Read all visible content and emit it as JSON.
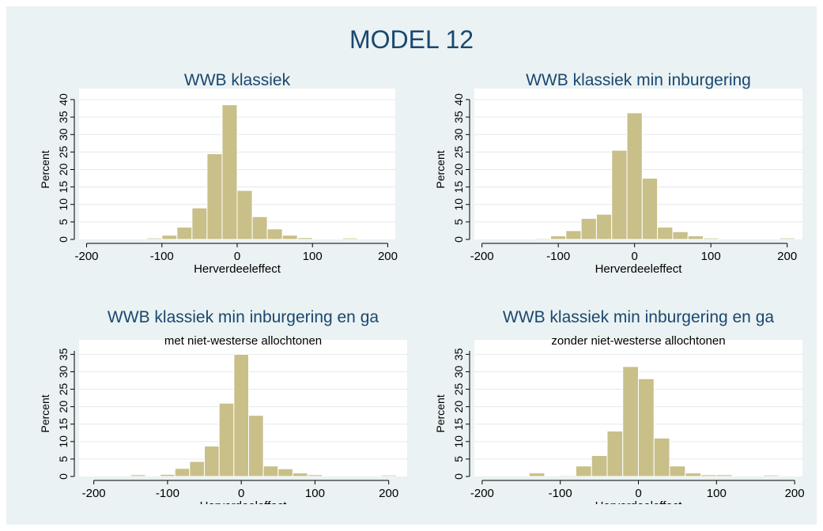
{
  "figure": {
    "title": "MODEL 12"
  },
  "colors": {
    "background": "#eaf2f3",
    "plot_region": "#ffffff",
    "bar_fill": "#c9bf88",
    "bar_stroke": "#ffffff",
    "grid": "#e3e9ec",
    "axis": "#000000",
    "title": "#1a476f"
  },
  "chart_data": [
    {
      "type": "bar",
      "title": "WWB klassiek",
      "subtitle": "",
      "xlabel": "Herverdeeleffect",
      "ylabel": "Percent",
      "xticks": [
        "-200",
        "-100",
        "0",
        "100",
        "200"
      ],
      "xtick_values": [
        -200,
        -100,
        0,
        100,
        200
      ],
      "yticks": [
        "0",
        "5",
        "10",
        "15",
        "20",
        "25",
        "30",
        "35",
        "40"
      ],
      "ytick_values": [
        0,
        5,
        10,
        15,
        20,
        25,
        30,
        35,
        40
      ],
      "xlim": [
        -210,
        210
      ],
      "ylim": [
        0,
        40
      ],
      "grid": true,
      "bins": [
        {
          "x0": -120,
          "x1": -100,
          "value": 0.4
        },
        {
          "x0": -100,
          "x1": -80,
          "value": 1.2
        },
        {
          "x0": -80,
          "x1": -60,
          "value": 3.5
        },
        {
          "x0": -60,
          "x1": -40,
          "value": 9.0
        },
        {
          "x0": -40,
          "x1": -20,
          "value": 24.5
        },
        {
          "x0": -20,
          "x1": 0,
          "value": 38.5
        },
        {
          "x0": 0,
          "x1": 20,
          "value": 14.0
        },
        {
          "x0": 20,
          "x1": 40,
          "value": 6.5
        },
        {
          "x0": 40,
          "x1": 60,
          "value": 3.0
        },
        {
          "x0": 60,
          "x1": 80,
          "value": 1.2
        },
        {
          "x0": 80,
          "x1": 100,
          "value": 0.5
        },
        {
          "x0": 140,
          "x1": 160,
          "value": 0.4
        }
      ]
    },
    {
      "type": "bar",
      "title": "WWB klassiek min inburgering",
      "subtitle": "",
      "xlabel": "Herverdeeleffect",
      "ylabel": "Percent",
      "xticks": [
        "-200",
        "-100",
        "0",
        "100",
        "200"
      ],
      "xtick_values": [
        -200,
        -100,
        0,
        100,
        200
      ],
      "yticks": [
        "0",
        "5",
        "10",
        "15",
        "20",
        "25",
        "30",
        "35",
        "40"
      ],
      "ytick_values": [
        0,
        5,
        10,
        15,
        20,
        25,
        30,
        35,
        40
      ],
      "xlim": [
        -210,
        220
      ],
      "ylim": [
        0,
        40
      ],
      "grid": true,
      "bins": [
        {
          "x0": -130,
          "x1": -110,
          "value": 0.3
        },
        {
          "x0": -110,
          "x1": -90,
          "value": 1.0
        },
        {
          "x0": -90,
          "x1": -70,
          "value": 2.5
        },
        {
          "x0": -70,
          "x1": -50,
          "value": 6.0
        },
        {
          "x0": -50,
          "x1": -30,
          "value": 7.2
        },
        {
          "x0": -30,
          "x1": -10,
          "value": 25.5
        },
        {
          "x0": -10,
          "x1": 10,
          "value": 36.2
        },
        {
          "x0": 10,
          "x1": 30,
          "value": 17.5
        },
        {
          "x0": 30,
          "x1": 50,
          "value": 3.5
        },
        {
          "x0": 50,
          "x1": 70,
          "value": 2.2
        },
        {
          "x0": 70,
          "x1": 90,
          "value": 1.0
        },
        {
          "x0": 90,
          "x1": 110,
          "value": 0.4
        },
        {
          "x0": 190,
          "x1": 210,
          "value": 0.4
        }
      ]
    },
    {
      "type": "bar",
      "title": "WWB klassiek min inburgering en ga",
      "subtitle": "met niet-westerse allochtonen",
      "xlabel": "Herverdeeleffect",
      "ylabel": "Percent",
      "xticks": [
        "-200",
        "-100",
        "0",
        "100",
        "200"
      ],
      "xtick_values": [
        -200,
        -100,
        0,
        100,
        200
      ],
      "yticks": [
        "0",
        "5",
        "10",
        "15",
        "20",
        "25",
        "30",
        "35"
      ],
      "ytick_values": [
        0,
        5,
        10,
        15,
        20,
        25,
        30,
        35
      ],
      "xlim": [
        -220,
        225
      ],
      "ylim": [
        0,
        36
      ],
      "grid": true,
      "bins": [
        {
          "x0": -150,
          "x1": -130,
          "value": 0.5
        },
        {
          "x0": -110,
          "x1": -90,
          "value": 0.6
        },
        {
          "x0": -90,
          "x1": -70,
          "value": 2.3
        },
        {
          "x0": -70,
          "x1": -50,
          "value": 4.3
        },
        {
          "x0": -50,
          "x1": -30,
          "value": 8.7
        },
        {
          "x0": -30,
          "x1": -10,
          "value": 21.0
        },
        {
          "x0": -10,
          "x1": 10,
          "value": 35.0
        },
        {
          "x0": 10,
          "x1": 30,
          "value": 17.5
        },
        {
          "x0": 30,
          "x1": 50,
          "value": 3.0
        },
        {
          "x0": 50,
          "x1": 70,
          "value": 2.2
        },
        {
          "x0": 70,
          "x1": 90,
          "value": 1.0
        },
        {
          "x0": 90,
          "x1": 110,
          "value": 0.5
        },
        {
          "x0": 190,
          "x1": 210,
          "value": 0.4
        }
      ]
    },
    {
      "type": "bar",
      "title": "WWB klassiek min inburgering en ga",
      "subtitle": "zonder niet-westerse allochtonen",
      "xlabel": "Herverdeeleffect",
      "ylabel": "Percent",
      "xticks": [
        "-200",
        "-100",
        "0",
        "100",
        "200"
      ],
      "xtick_values": [
        -200,
        -100,
        0,
        100,
        200
      ],
      "yticks": [
        "0",
        "5",
        "10",
        "15",
        "20",
        "25",
        "30",
        "35"
      ],
      "ytick_values": [
        0,
        5,
        10,
        15,
        20,
        25,
        30,
        35
      ],
      "xlim": [
        -210,
        210
      ],
      "ylim": [
        0,
        36
      ],
      "grid": true,
      "bins": [
        {
          "x0": -140,
          "x1": -120,
          "value": 1.0
        },
        {
          "x0": -100,
          "x1": -80,
          "value": 0.3
        },
        {
          "x0": -80,
          "x1": -60,
          "value": 3.0
        },
        {
          "x0": -60,
          "x1": -40,
          "value": 6.0
        },
        {
          "x0": -40,
          "x1": -20,
          "value": 13.0
        },
        {
          "x0": -20,
          "x1": 0,
          "value": 31.5
        },
        {
          "x0": 0,
          "x1": 20,
          "value": 28.0
        },
        {
          "x0": 20,
          "x1": 40,
          "value": 11.0
        },
        {
          "x0": 40,
          "x1": 60,
          "value": 3.0
        },
        {
          "x0": 60,
          "x1": 80,
          "value": 1.0
        },
        {
          "x0": 80,
          "x1": 100,
          "value": 0.5
        },
        {
          "x0": 100,
          "x1": 120,
          "value": 0.5
        },
        {
          "x0": 160,
          "x1": 180,
          "value": 0.4
        }
      ]
    }
  ]
}
